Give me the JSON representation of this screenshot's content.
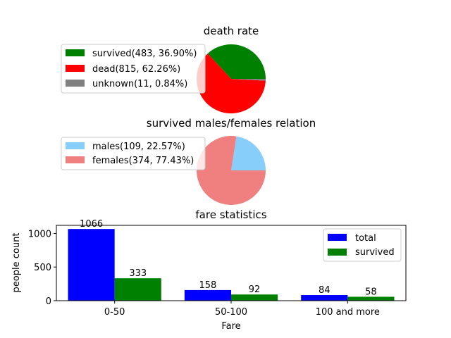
{
  "chart_data": [
    {
      "type": "pie",
      "title": "death rate",
      "slices": [
        {
          "label": "survived(483, 36.90%)",
          "value": 483,
          "color": "#008000"
        },
        {
          "label": "dead(815, 62.26%)",
          "value": 815,
          "color": "#ff0000"
        },
        {
          "label": "unknown(11, 0.84%)",
          "value": 11,
          "color": "#808080"
        }
      ],
      "legend": "left"
    },
    {
      "type": "pie",
      "title": "survived males/females relation",
      "slices": [
        {
          "label": "males(109, 22.57%)",
          "value": 109,
          "color": "#87cefa"
        },
        {
          "label": "females(374, 77.43%)",
          "value": 374,
          "color": "#f08080"
        }
      ],
      "legend": "left"
    },
    {
      "type": "bar",
      "title": "fare statistics",
      "categories": [
        "0-50",
        "50-100",
        "100 and more"
      ],
      "series": [
        {
          "name": "total",
          "values": [
            1066,
            158,
            84
          ],
          "color": "#0000ff"
        },
        {
          "name": "survived",
          "values": [
            333,
            92,
            58
          ],
          "color": "#008000"
        }
      ],
      "xlabel": "Fare",
      "ylabel": "people count",
      "yticks": [
        0,
        500,
        1000
      ],
      "ylim": [
        0,
        1120
      ],
      "legend": "top-right"
    }
  ]
}
